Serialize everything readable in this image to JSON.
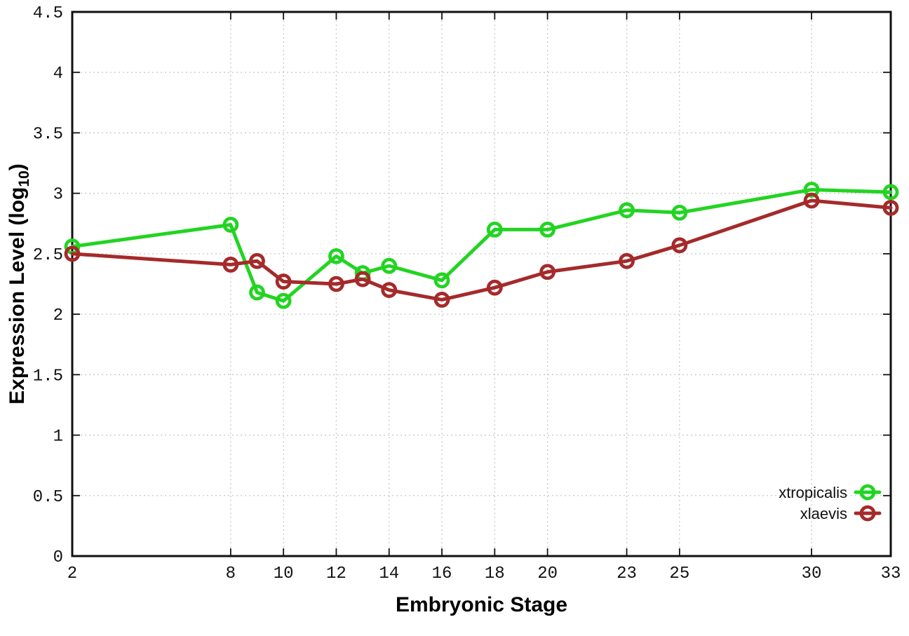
{
  "chart_data": {
    "type": "line",
    "title": "",
    "xlabel": "Embryonic Stage",
    "ylabel": "Expression Level (log10)",
    "ylabel_parts": {
      "main": "Expression Level (log",
      "sub": "10",
      "close": ")"
    },
    "x": [
      2,
      8,
      9,
      10,
      12,
      13,
      14,
      16,
      18,
      20,
      23,
      25,
      30,
      33
    ],
    "series": [
      {
        "name": "xtropicalis",
        "color": "#22d422",
        "marker": "open-circle",
        "values": [
          2.56,
          2.74,
          2.18,
          2.11,
          2.48,
          2.34,
          2.4,
          2.28,
          2.7,
          2.7,
          2.86,
          2.84,
          3.03,
          3.01
        ]
      },
      {
        "name": "xlaevis",
        "color": "#a52a2a",
        "marker": "open-circle",
        "values": [
          2.5,
          2.41,
          2.44,
          2.27,
          2.25,
          2.29,
          2.2,
          2.12,
          2.22,
          2.35,
          2.44,
          2.57,
          2.94,
          2.88
        ]
      }
    ],
    "xticks": [
      2,
      8,
      10,
      12,
      14,
      16,
      18,
      20,
      23,
      25,
      30,
      33
    ],
    "yticks": [
      0,
      0.5,
      1,
      1.5,
      2,
      2.5,
      3,
      3.5,
      4,
      4.5
    ],
    "xlim": [
      2,
      33
    ],
    "ylim": [
      0,
      4.5
    ],
    "grid": true,
    "grid_style": "dotted",
    "legend_position": "bottom-right",
    "colors": {
      "background": "#ffffff",
      "frame": "#111111",
      "grid": "#c8c8c8",
      "text": "#111111"
    }
  }
}
